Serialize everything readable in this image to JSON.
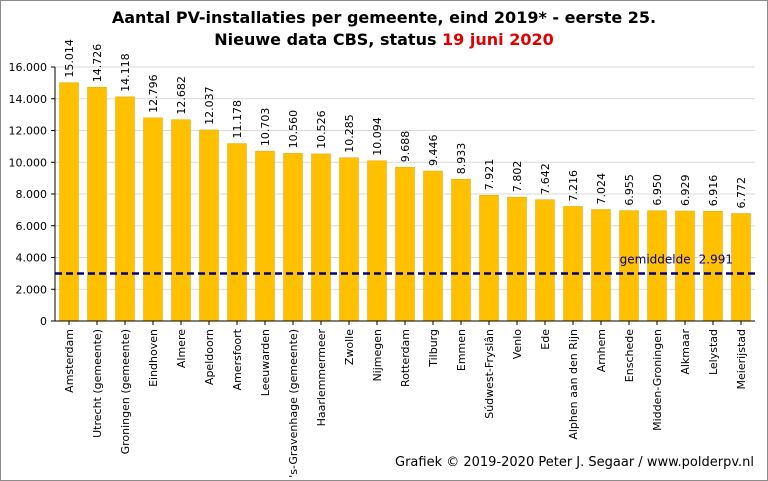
{
  "title": {
    "line1": "Aantal PV-installaties  per gemeente, eind 2019* - eerste 25.",
    "line2_prefix": "Nieuwe data CBS, status ",
    "line2_highlight": "19 juni 2020"
  },
  "credit": "Grafiek © 2019-2020 Peter J. Segaar / www.polderpv.nl",
  "colors": {
    "bar": "#ffc000",
    "bar_edge": "#e0a800",
    "average_line": "#000080",
    "grid": "#d9d9d9",
    "highlight": "#e00000"
  },
  "chart_data": {
    "type": "bar",
    "categories": [
      "Amsterdam",
      "Utrecht (gemeente)",
      "Groningen (gemeente)",
      "Eindhoven",
      "Almere",
      "Apeldoorn",
      "Amersfoort",
      "Leeuwarden",
      "'s-Gravenhage (gemeente)",
      "Haarlemmermeer",
      "Zwolle",
      "Nijmegen",
      "Rotterdam",
      "Tilburg",
      "Emmen",
      "Súdwest-Fryslân",
      "Venlo",
      "Ede",
      "Alphen aan den Rijn",
      "Arnhem",
      "Enschede",
      "Midden-Groningen",
      "Alkmaar",
      "Lelystad",
      "Meierijstad"
    ],
    "values": [
      15014,
      14726,
      14118,
      12796,
      12682,
      12037,
      11178,
      10703,
      10560,
      10526,
      10285,
      10094,
      9688,
      9446,
      8933,
      7921,
      7802,
      7642,
      7216,
      7024,
      6955,
      6950,
      6929,
      6916,
      6772
    ],
    "value_labels": [
      "15.014",
      "14.726",
      "14.118",
      "12.796",
      "12.682",
      "12.037",
      "11.178",
      "10.703",
      "10.560",
      "10.526",
      "10.285",
      "10.094",
      "9.688",
      "9.446",
      "8.933",
      "7.921",
      "7.802",
      "7.642",
      "7.216",
      "7.024",
      "6.955",
      "6.950",
      "6.929",
      "6.916",
      "6.772"
    ],
    "ylim": [
      0,
      16000
    ],
    "yticks": [
      0,
      2000,
      4000,
      6000,
      8000,
      10000,
      12000,
      14000,
      16000
    ],
    "ytick_labels": [
      "0",
      "2.000",
      "4.000",
      "6.000",
      "8.000",
      "10.000",
      "12.000",
      "14.000",
      "16.000"
    ],
    "grid": true,
    "average": {
      "value": 2991,
      "label": "gemiddelde",
      "value_label": "2.991"
    }
  }
}
